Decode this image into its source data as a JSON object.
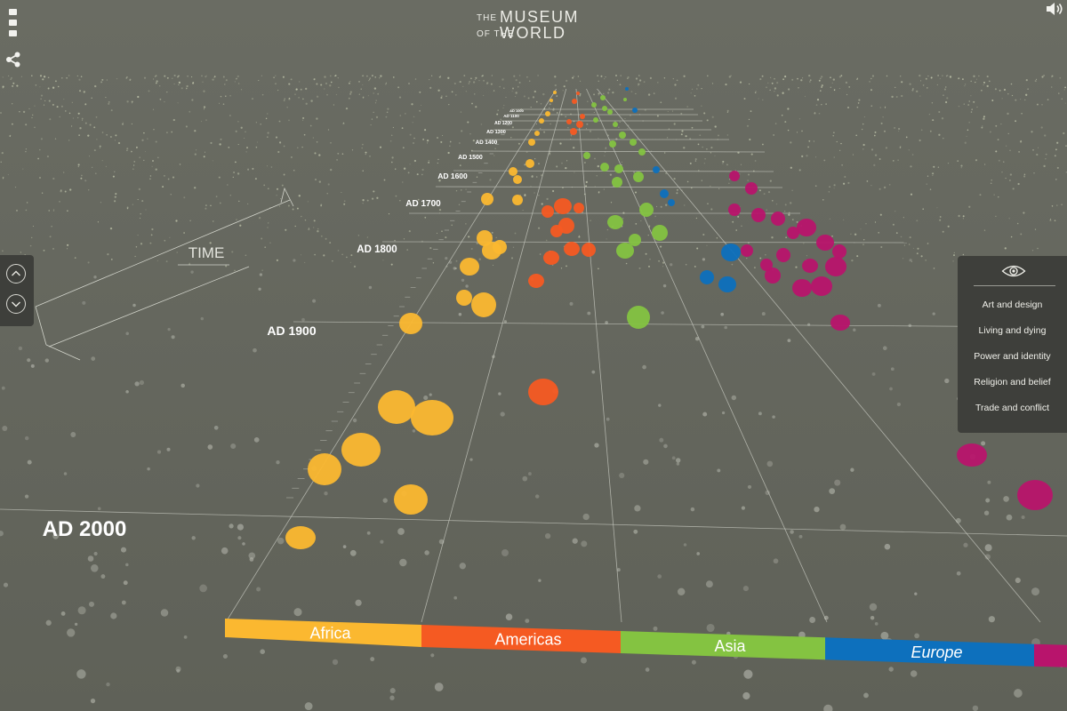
{
  "app": {
    "logo_the": "THE",
    "logo_of_the": "OF THE",
    "logo_museum": "MUSEUM",
    "logo_world": "WORLD"
  },
  "timeline": {
    "axis_title": "TIME",
    "year_labels": [
      "AD 2000",
      "AD 1900",
      "AD 1800",
      "AD 1700",
      "AD 1600",
      "AD 1500",
      "AD 1400",
      "AD 1300",
      "AD 1200",
      "AD 1100",
      "AD 1000"
    ]
  },
  "regions": [
    {
      "label": "Africa",
      "color": "#fbb830"
    },
    {
      "label": "Americas",
      "color": "#f55a22"
    },
    {
      "label": "Asia",
      "color": "#84c341"
    },
    {
      "label": "Europe",
      "color": "#0d70bd"
    },
    {
      "label": "",
      "color": "#b8146c"
    }
  ],
  "filter_panel": {
    "icon": "eye-icon",
    "items": [
      "Art and design",
      "Living and dying",
      "Power and identity",
      "Religion and belief",
      "Trade and conflict"
    ]
  },
  "icons": {
    "menu": "menu-icon",
    "share": "share-icon",
    "sound": "speaker-icon",
    "time_up": "chevron-up-icon",
    "time_down": "chevron-down-icon"
  },
  "colors": {
    "background": "#63655c",
    "panel": "#3e3f3b",
    "africa": "#fbb830",
    "americas": "#f55a22",
    "asia": "#84c341",
    "europe": "#0d70bd",
    "oceania": "#b8146c"
  }
}
